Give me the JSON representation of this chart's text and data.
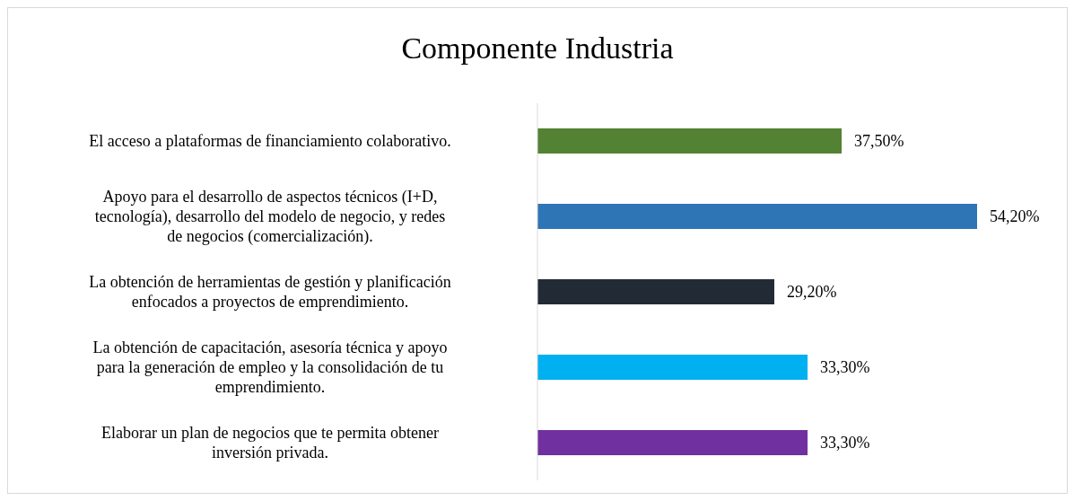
{
  "chart_data": {
    "type": "bar",
    "title": "Componente Industria",
    "orientation": "horizontal",
    "categories": [
      "El acceso a plataformas de financiamiento colaborativo.",
      "Apoyo para el desarrollo de aspectos técnicos (I+D, tecnología), desarrollo del modelo de negocio, y redes de negocios (comercialización).",
      "La obtención de herramientas de gestión y planificación enfocados a proyectos de emprendimiento.",
      "La obtención de capacitación, asesoría técnica y apoyo para la generación de empleo y la consolidación de tu emprendimiento.",
      "Elaborar un plan de negocios que te permita obtener inversión privada."
    ],
    "values": [
      37.5,
      54.2,
      29.2,
      33.3,
      33.3
    ],
    "value_labels": [
      "37,50%",
      "54,20%",
      "29,20%",
      "33,30%",
      "33,30%"
    ],
    "colors": [
      "#548235",
      "#2e75b6",
      "#222a35",
      "#00b0f0",
      "#7030a0"
    ]
  }
}
